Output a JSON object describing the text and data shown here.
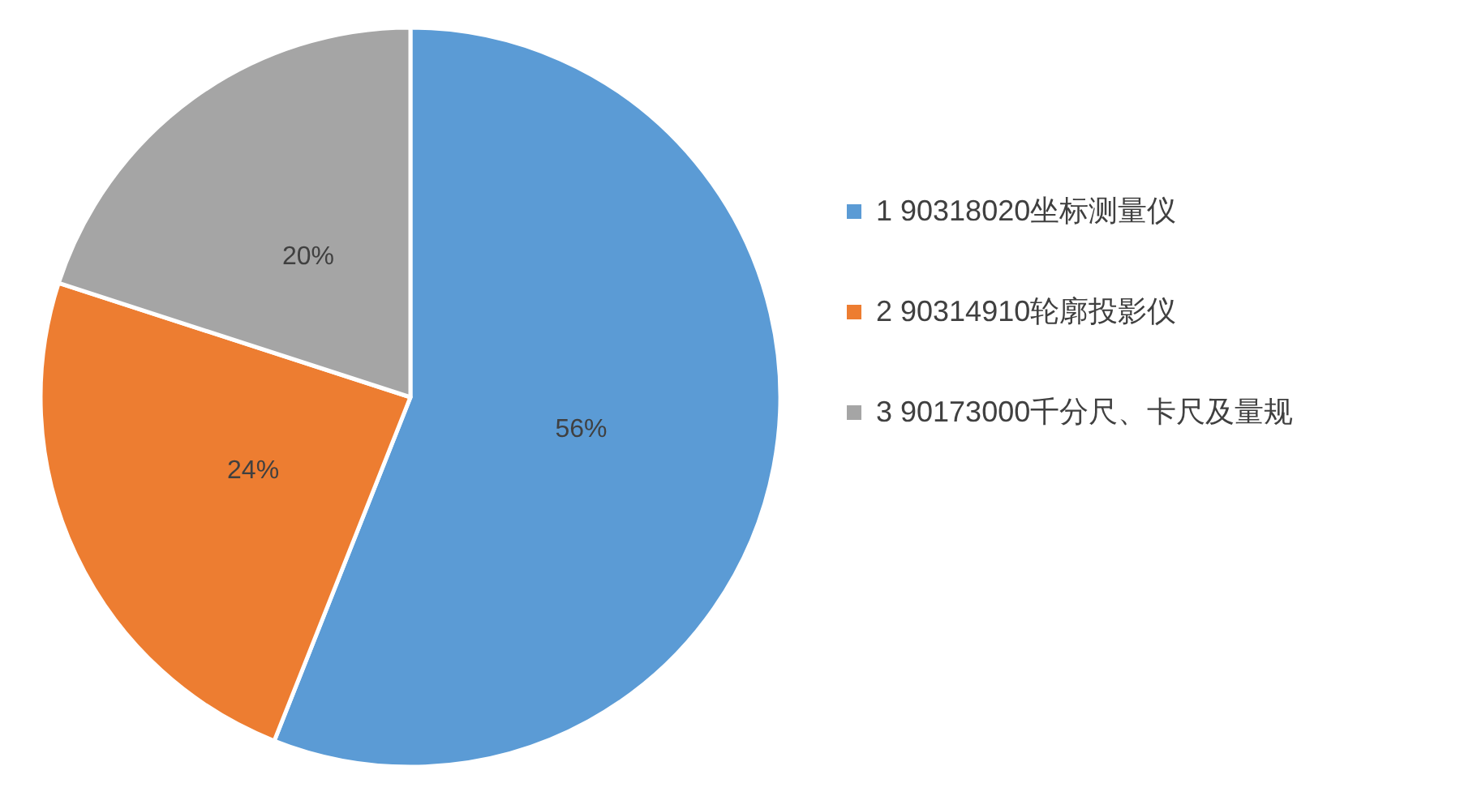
{
  "chart_data": {
    "type": "pie",
    "categories": [
      "1 90318020坐标测量仪",
      "2 90314910轮廓投影仪",
      "3 90173000千分尺、卡尺及量规"
    ],
    "values": [
      56,
      24,
      20
    ],
    "colors": [
      "#5b9bd5",
      "#ed7d31",
      "#a5a5a5"
    ],
    "value_labels": [
      "56%",
      "24%",
      "20%"
    ],
    "legend": "right"
  }
}
